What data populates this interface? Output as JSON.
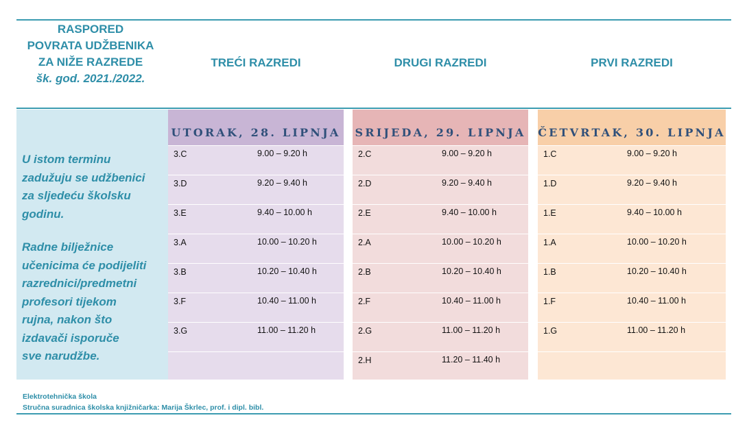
{
  "header": {
    "title_lines": [
      "RASPORED",
      "POVRATA UDŽBENIKA",
      "ZA NIŽE RAZREDE"
    ],
    "school_year": "šk. god. 2021./2022.",
    "columns": [
      "TREĆI RAZREDI",
      "DRUGI RAZREDI",
      "PRVI RAZREDI"
    ]
  },
  "note": {
    "paragraph1": [
      "U istom terminu",
      "zadužuju se udžbenici",
      "za sljedeću školsku",
      "godinu."
    ],
    "paragraph2": [
      "Radne bilježnice",
      "učenicima će podijeliti",
      "razrednici/predmetni",
      "profesori tijekom",
      "rujna, nakon što",
      "izdavači isporuče",
      "sve narudžbe."
    ]
  },
  "days": [
    {
      "label": "UTORAK, 28. LIPNJA",
      "rows": [
        {
          "class": "3.C",
          "time": "9.00 – 9.20 h"
        },
        {
          "class": "3.D",
          "time": "9.20 – 9.40 h"
        },
        {
          "class": "3.E",
          "time": "9.40 – 10.00 h"
        },
        {
          "class": "3.A",
          "time": "10.00 – 10.20 h"
        },
        {
          "class": "3.B",
          "time": "10.20 – 10.40 h"
        },
        {
          "class": "3.F",
          "time": "10.40 – 11.00 h"
        },
        {
          "class": "3.G",
          "time": "11.00 – 11.20 h"
        },
        {
          "class": "",
          "time": ""
        }
      ]
    },
    {
      "label": "SRIJEDA, 29. LIPNJA",
      "rows": [
        {
          "class": "2.C",
          "time": "9.00 – 9.20 h"
        },
        {
          "class": "2.D",
          "time": "9.20 – 9.40 h"
        },
        {
          "class": "2.E",
          "time": "9.40 – 10.00 h"
        },
        {
          "class": "2.A",
          "time": "10.00 – 10.20 h"
        },
        {
          "class": "2.B",
          "time": "10.20 – 10.40 h"
        },
        {
          "class": "2.F",
          "time": "10.40 – 11.00 h"
        },
        {
          "class": "2.G",
          "time": "11.00 – 11.20 h"
        },
        {
          "class": "2.H",
          "time": "11.20 – 11.40 h"
        }
      ]
    },
    {
      "label": "ČETVRTAK, 30. LIPNJA",
      "rows": [
        {
          "class": "1.C",
          "time": "9.00 – 9.20 h"
        },
        {
          "class": "1.D",
          "time": "9.20 – 9.40 h"
        },
        {
          "class": "1.E",
          "time": "9.40 – 10.00 h"
        },
        {
          "class": "1.A",
          "time": "10.00 – 10.20 h"
        },
        {
          "class": "1.B",
          "time": "10.20 – 10.40 h"
        },
        {
          "class": "1.F",
          "time": "10.40 – 11.00 h"
        },
        {
          "class": "1.G",
          "time": "11.00 – 11.20 h"
        },
        {
          "class": "",
          "time": ""
        }
      ]
    }
  ],
  "footer": {
    "line1": "Elektrotehnička škola",
    "line2": "Stručna suradnica školska knjižničarka: Marija Škrlec, prof. i dipl. bibl."
  },
  "colors": {
    "accent": "#2e8ea8",
    "rule": "#3a9bb0",
    "note_bg": "#d2e9f1",
    "day_text": "#30507a",
    "tuesday_head": "#c8b5d5",
    "tuesday_body": "#e6dcec",
    "wednesday_head": "#e6b5b6",
    "wednesday_body": "#f2dcdc",
    "thursday_head": "#f8cfa8",
    "thursday_body": "#fde7d4"
  }
}
